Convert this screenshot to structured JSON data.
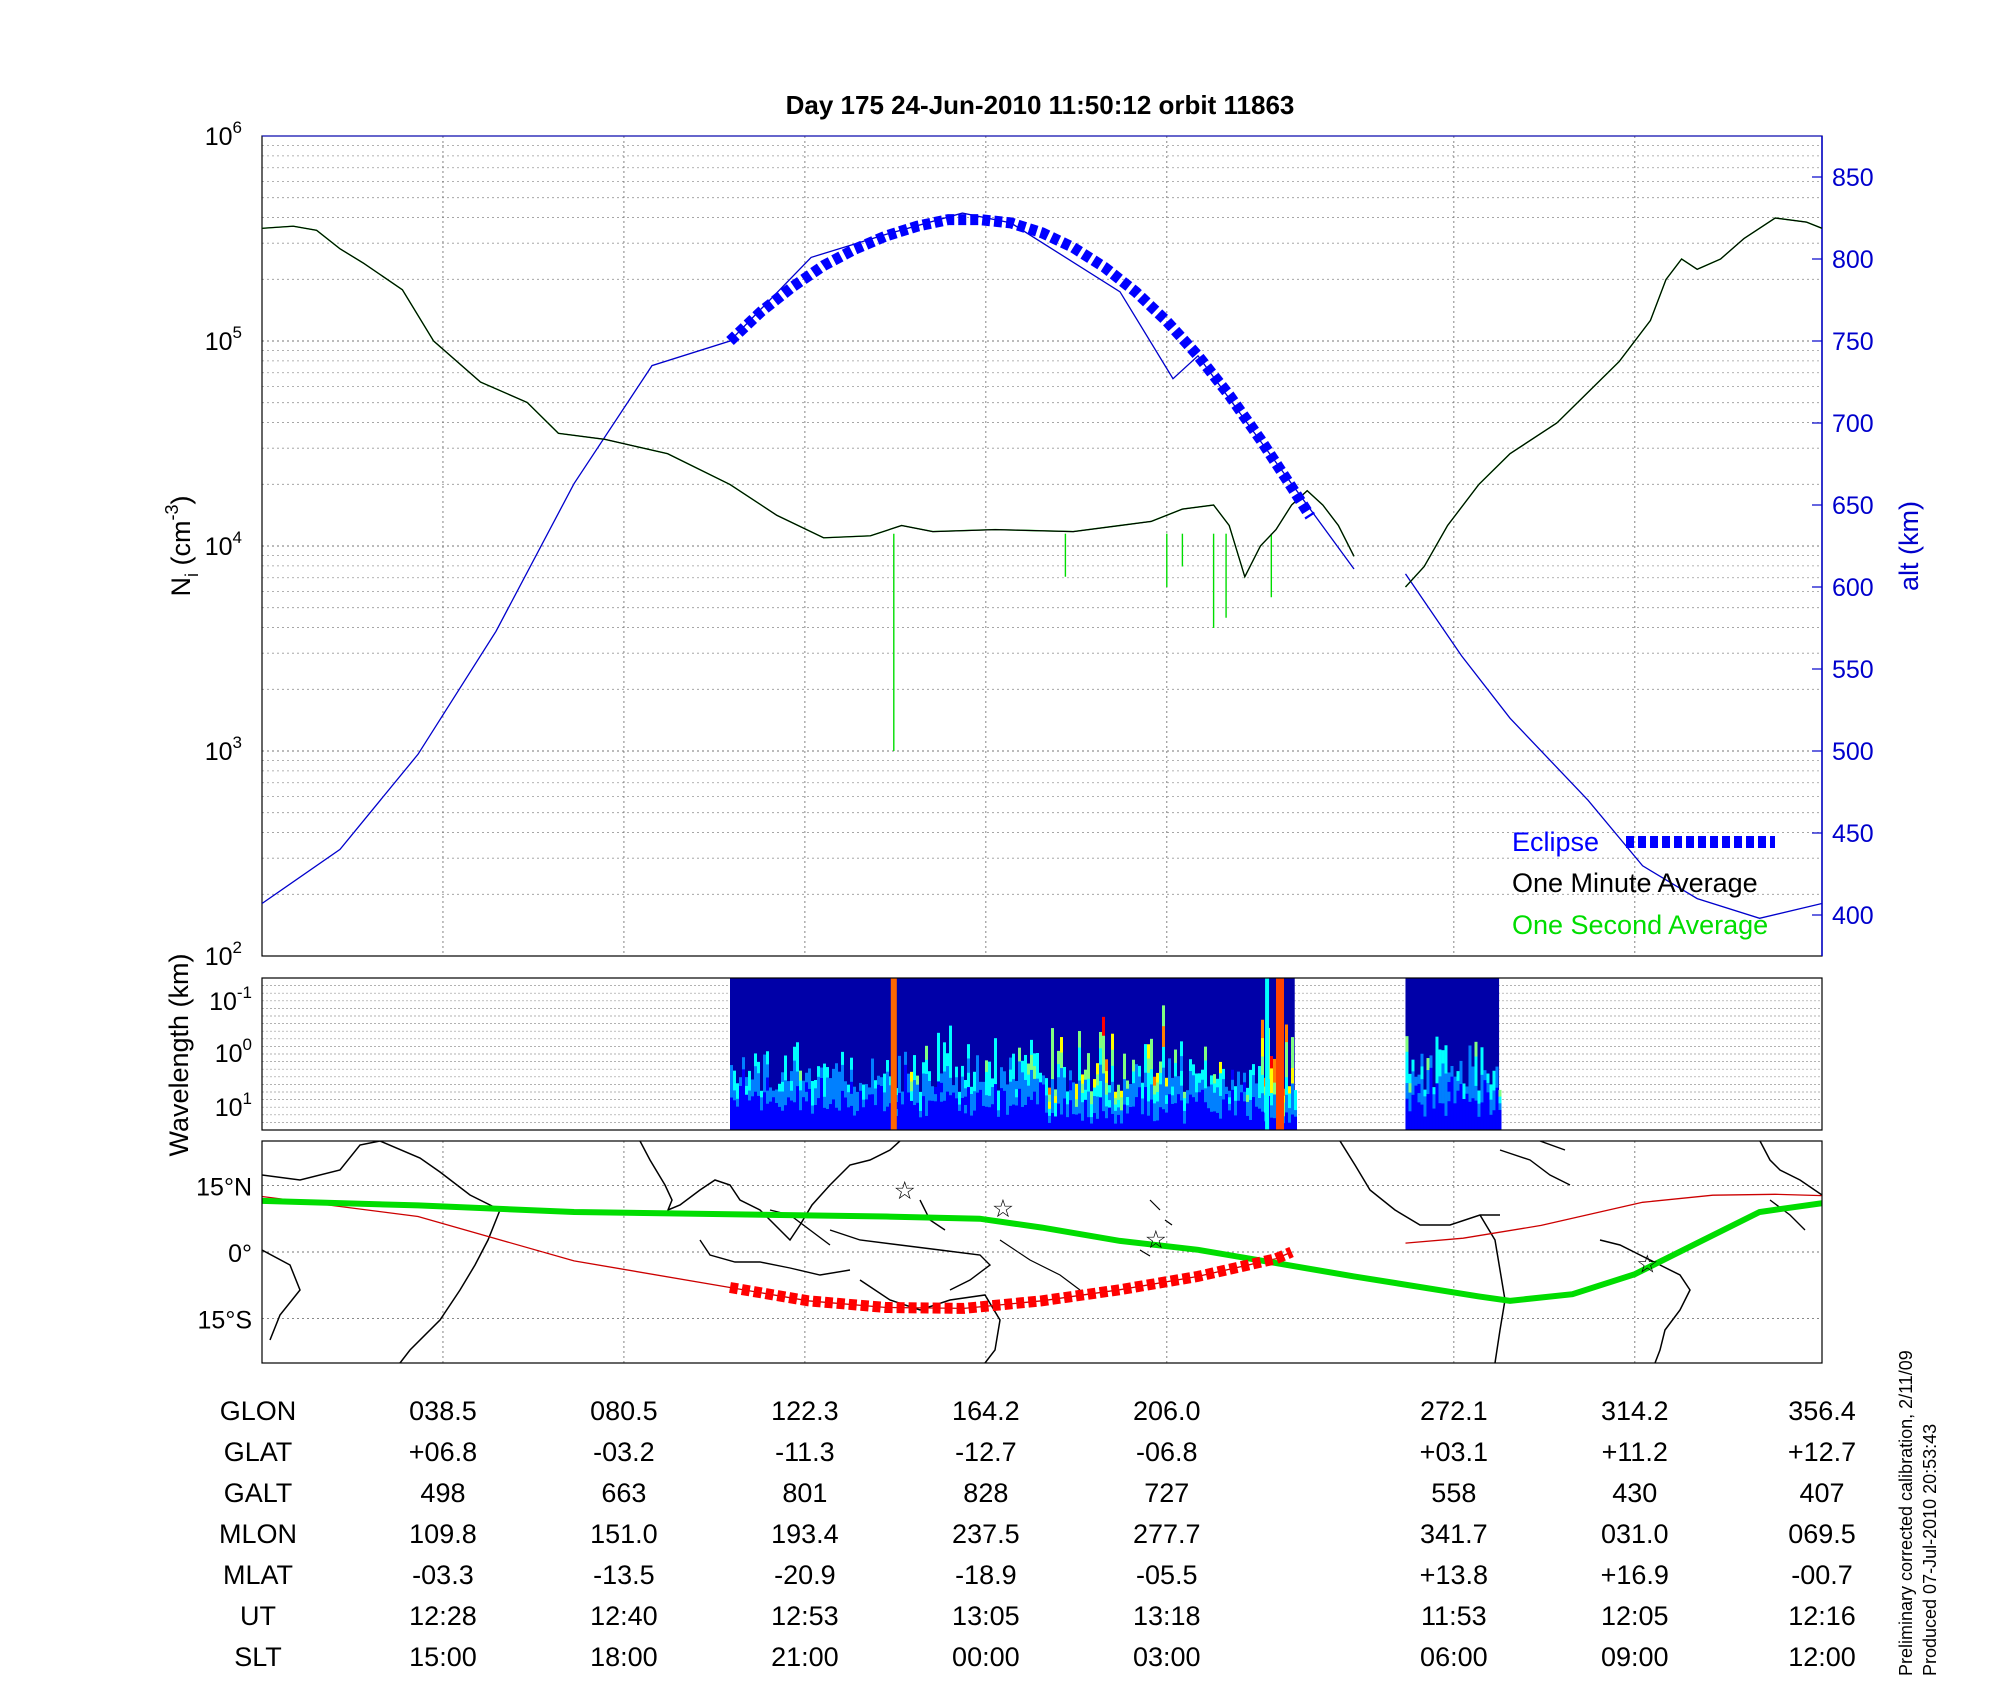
{
  "title": "Day 175  24-Jun-2010 11:50:12   orbit 11863",
  "colors": {
    "alt": "#0000cc",
    "eclipse": "#0000ff",
    "one_minute": "#000000",
    "one_second": "#00dd00",
    "track": "#cc0000",
    "eclipse_track": "#ff0000",
    "stars": "#cc33cc"
  },
  "chart_data": [
    {
      "type": "line",
      "panel": "density",
      "ylabel": "N",
      "ylabel_sub": "i",
      "ylabel_unit": " (cm",
      "ylabel_sup": "-3",
      "ylabel_close": ")",
      "yscale": "log",
      "ylim": [
        100,
        1000000
      ],
      "y_tick_bases": [
        "10",
        "10",
        "10",
        "10",
        "10"
      ],
      "y_tick_exps": [
        "2",
        "3",
        "4",
        "5",
        "6"
      ],
      "y2label": "alt (km)",
      "y2lim": [
        375,
        875
      ],
      "y2ticks": [
        "400",
        "450",
        "500",
        "550",
        "600",
        "650",
        "700",
        "750",
        "800",
        "850"
      ],
      "grid": true,
      "legend_position": "bottom-right",
      "series": [
        {
          "name": "Eclipse",
          "style": "thick dashed",
          "alt_km": [
            [
              0.3,
              750
            ],
            [
              0.32,
              768
            ],
            [
              0.34,
              783
            ],
            [
              0.36,
              796
            ],
            [
              0.38,
              806
            ],
            [
              0.4,
              814
            ],
            [
              0.42,
              820
            ],
            [
              0.44,
              824
            ],
            [
              0.46,
              824
            ],
            [
              0.48,
              822
            ],
            [
              0.5,
              816
            ],
            [
              0.52,
              807
            ],
            [
              0.54,
              795
            ],
            [
              0.56,
              780
            ],
            [
              0.58,
              762
            ],
            [
              0.6,
              741
            ],
            [
              0.62,
              717
            ],
            [
              0.64,
              690
            ],
            [
              0.66,
              661
            ],
            [
              0.672,
              643
            ]
          ]
        },
        {
          "name": "One Minute Average",
          "log_density": [
            [
              0.0,
              5.55
            ],
            [
              0.02,
              5.56
            ],
            [
              0.035,
              5.54
            ],
            [
              0.05,
              5.45
            ],
            [
              0.065,
              5.38
            ],
            [
              0.09,
              5.25
            ],
            [
              0.11,
              5.0
            ],
            [
              0.14,
              4.8
            ],
            [
              0.17,
              4.7
            ],
            [
              0.19,
              4.55
            ],
            [
              0.22,
              4.52
            ],
            [
              0.26,
              4.45
            ],
            [
              0.3,
              4.3
            ],
            [
              0.33,
              4.15
            ],
            [
              0.36,
              4.04
            ],
            [
              0.39,
              4.05
            ],
            [
              0.41,
              4.1
            ],
            [
              0.43,
              4.07
            ],
            [
              0.47,
              4.08
            ],
            [
              0.52,
              4.07
            ],
            [
              0.55,
              4.1
            ],
            [
              0.57,
              4.12
            ],
            [
              0.59,
              4.18
            ],
            [
              0.61,
              4.2
            ],
            [
              0.62,
              4.1
            ],
            [
              0.63,
              3.85
            ],
            [
              0.64,
              4.0
            ],
            [
              0.65,
              4.08
            ],
            [
              0.66,
              4.2
            ],
            [
              0.67,
              4.27
            ],
            [
              0.68,
              4.2
            ],
            [
              0.69,
              4.1
            ],
            [
              0.7,
              3.95
            ]
          ],
          "segment2": [
            [
              0.733,
              3.8
            ],
            [
              0.745,
              3.9
            ],
            [
              0.76,
              4.1
            ],
            [
              0.78,
              4.3
            ],
            [
              0.8,
              4.45
            ],
            [
              0.83,
              4.6
            ],
            [
              0.85,
              4.75
            ],
            [
              0.87,
              4.9
            ],
            [
              0.89,
              5.1
            ],
            [
              0.9,
              5.3
            ],
            [
              0.91,
              5.4
            ],
            [
              0.92,
              5.35
            ],
            [
              0.935,
              5.4
            ],
            [
              0.95,
              5.5
            ],
            [
              0.97,
              5.6
            ],
            [
              0.99,
              5.58
            ],
            [
              1.0,
              5.55
            ]
          ]
        },
        {
          "name": "One Second Average",
          "spikes": [
            [
              0.405,
              3.0
            ],
            [
              0.515,
              3.85
            ],
            [
              0.58,
              3.8
            ],
            [
              0.59,
              3.9
            ],
            [
              0.61,
              3.6
            ],
            [
              0.618,
              3.65
            ],
            [
              0.647,
              3.75
            ]
          ]
        },
        {
          "name": "alt",
          "alt_km": [
            [
              0.0,
              407
            ],
            [
              0.05,
              440
            ],
            [
              0.1,
              498
            ],
            [
              0.15,
              573
            ],
            [
              0.2,
              663
            ],
            [
              0.25,
              735
            ],
            [
              0.3,
              750
            ],
            [
              0.352,
              801
            ],
            [
              0.4,
              815
            ],
            [
              0.449,
              828
            ],
            [
              0.48,
              822
            ],
            [
              0.55,
              780
            ],
            [
              0.584,
              727
            ],
            [
              0.6,
              741
            ],
            [
              0.65,
              676
            ],
            [
              0.7,
              611
            ]
          ],
          "segment2": [
            [
              0.733,
              608
            ],
            [
              0.769,
              558
            ],
            [
              0.8,
              520
            ],
            [
              0.85,
              470
            ],
            [
              0.885,
              430
            ],
            [
              0.92,
              410
            ],
            [
              0.96,
              398
            ],
            [
              1.0,
              407
            ]
          ]
        }
      ]
    },
    {
      "type": "heatmap",
      "panel": "spectrogram",
      "ylabel": "Wavelength (km)",
      "y_tick_bases": [
        "10",
        "10",
        "10"
      ],
      "y_tick_exps": [
        "-1",
        "0",
        "1"
      ],
      "colorscale": [
        "#000080",
        "#0000ff",
        "#0080ff",
        "#00ffff",
        "#80ff80",
        "#ffff00",
        "#ff8000",
        "#ff0000"
      ],
      "data_blocks_fraction": [
        [
          0.3,
          0.662
        ],
        [
          0.733,
          0.793
        ]
      ]
    },
    {
      "type": "map",
      "panel": "ground_track",
      "lat_ticks": [
        "15°N",
        "0°",
        "15°S"
      ],
      "lat_values": [
        15,
        0,
        -15
      ],
      "ylim": [
        -25,
        25
      ],
      "magnetic_equator_lat": [
        [
          0.0,
          11.5
        ],
        [
          0.1,
          10.5
        ],
        [
          0.2,
          9.0
        ],
        [
          0.3,
          8.5
        ],
        [
          0.4,
          8.0
        ],
        [
          0.46,
          7.5
        ],
        [
          0.5,
          5.5
        ],
        [
          0.55,
          2.5
        ],
        [
          0.6,
          0.5
        ],
        [
          0.65,
          -2.5
        ],
        [
          0.7,
          -5.5
        ],
        [
          0.78,
          -10.0
        ],
        [
          0.8,
          -11.0
        ],
        [
          0.84,
          -9.5
        ],
        [
          0.88,
          -5.0
        ],
        [
          0.92,
          2.0
        ],
        [
          0.96,
          9.0
        ],
        [
          1.0,
          11.0
        ]
      ],
      "orbit_track_lat": [
        [
          0.0,
          12.5
        ],
        [
          0.1,
          8.0
        ],
        [
          0.2,
          -2.0
        ],
        [
          0.3,
          -8.0
        ],
        [
          0.35,
          -11.0
        ],
        [
          0.4,
          -12.5
        ],
        [
          0.45,
          -12.7
        ],
        [
          0.5,
          -11.0
        ],
        [
          0.55,
          -8.5
        ],
        [
          0.6,
          -5.5
        ],
        [
          0.65,
          -1.5
        ],
        [
          0.66,
          0.0
        ]
      ],
      "orbit_track_lat_2": [
        [
          0.733,
          2.0
        ],
        [
          0.77,
          3.1
        ],
        [
          0.82,
          6.0
        ],
        [
          0.885,
          11.2
        ],
        [
          0.93,
          12.8
        ],
        [
          0.97,
          13.0
        ],
        [
          1.0,
          12.7
        ]
      ],
      "stars": [
        [
          0.412,
          13.5
        ],
        [
          0.475,
          9.5
        ],
        [
          0.573,
          2.5
        ],
        [
          0.888,
          -3.0
        ]
      ]
    }
  ],
  "table": {
    "rows": [
      {
        "label": "GLON",
        "values": [
          "038.5",
          "080.5",
          "122.3",
          "164.2",
          "206.0",
          "272.1",
          "314.2",
          "356.4"
        ]
      },
      {
        "label": "GLAT",
        "values": [
          "+06.8",
          "-03.2",
          "-11.3",
          "-12.7",
          "-06.8",
          "+03.1",
          "+11.2",
          "+12.7"
        ]
      },
      {
        "label": "GALT",
        "values": [
          "498",
          "663",
          "801",
          "828",
          "727",
          "558",
          "430",
          "407"
        ]
      },
      {
        "label": "MLON",
        "values": [
          "109.8",
          "151.0",
          "193.4",
          "237.5",
          "277.7",
          "341.7",
          "031.0",
          "069.5"
        ]
      },
      {
        "label": "MLAT",
        "values": [
          "-03.3",
          "-13.5",
          "-20.9",
          "-18.9",
          "-05.5",
          "+13.8",
          "+16.9",
          "-00.7"
        ]
      },
      {
        "label": "UT",
        "values": [
          "12:28",
          "12:40",
          "12:53",
          "13:05",
          "13:18",
          "11:53",
          "12:05",
          "12:16"
        ]
      },
      {
        "label": "SLT",
        "values": [
          "15:00",
          "18:00",
          "21:00",
          "00:00",
          "03:00",
          "06:00",
          "09:00",
          "12:00"
        ]
      }
    ]
  },
  "legend": [
    "Eclipse",
    "One Minute Average",
    "One Second Average"
  ],
  "notes": [
    "Preliminary corrected calibration, 2/11/09",
    "Produced 07-Jul-2010 20:53:43"
  ]
}
